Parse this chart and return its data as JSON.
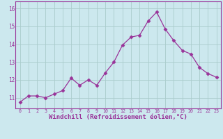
{
  "x": [
    0,
    1,
    2,
    3,
    4,
    5,
    6,
    7,
    8,
    9,
    10,
    11,
    12,
    13,
    14,
    15,
    16,
    17,
    18,
    19,
    20,
    21,
    22,
    23
  ],
  "y": [
    10.75,
    11.1,
    11.1,
    11.0,
    11.2,
    11.4,
    12.1,
    11.7,
    12.0,
    11.7,
    12.4,
    13.0,
    13.95,
    14.4,
    14.5,
    15.3,
    15.8,
    14.85,
    14.2,
    13.65,
    13.45,
    12.7,
    12.35,
    12.15
  ],
  "line_color": "#993399",
  "marker": "D",
  "marker_size": 2.5,
  "bg_color": "#cce8ee",
  "grid_color": "#aacccc",
  "xlabel": "Windchill (Refroidissement éolien,°C)",
  "xlabel_fontsize": 6.5,
  "tick_color": "#993399",
  "xtick_labels": [
    "0",
    "1",
    "2",
    "3",
    "4",
    "5",
    "6",
    "7",
    "8",
    "9",
    "10",
    "11",
    "12",
    "13",
    "14",
    "15",
    "16",
    "17",
    "18",
    "19",
    "20",
    "21",
    "22",
    "23"
  ],
  "ytick_vals": [
    11,
    12,
    13,
    14,
    15,
    16
  ],
  "ylim": [
    10.4,
    16.4
  ],
  "xlim": [
    -0.5,
    23.5
  ]
}
